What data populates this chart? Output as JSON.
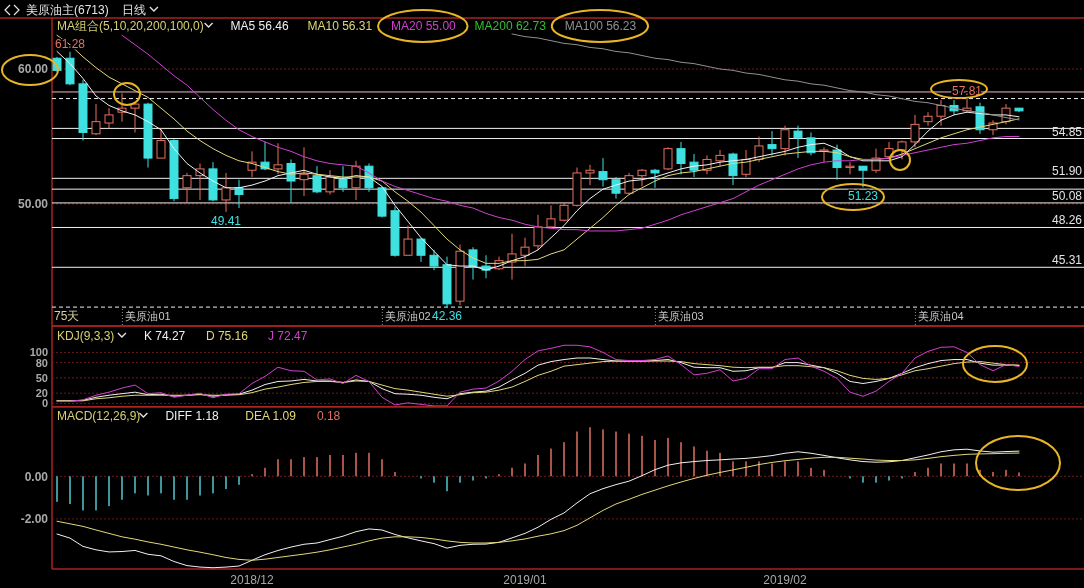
{
  "chart_data": [
    {
      "type": "candlestick",
      "title": "美原油主(6713)",
      "subtitle": "日线",
      "legend_title": "MA组合(5,10,20,200,100,0)",
      "legend": "top left",
      "grid": "y",
      "categories": [
        null,
        null,
        null,
        null,
        null,
        null,
        null,
        "美原油01",
        null,
        null,
        null,
        null,
        null,
        null,
        null,
        null,
        null,
        null,
        null,
        null,
        null,
        null,
        null,
        null,
        null,
        null,
        null,
        "美原油02",
        null,
        null,
        null,
        null,
        null,
        null,
        null,
        null,
        null,
        null,
        null,
        null,
        null,
        null,
        null,
        null,
        null,
        null,
        null,
        null,
        "美原油03",
        null,
        null,
        null,
        null,
        null,
        null,
        null,
        null,
        null,
        null,
        null,
        null,
        null,
        null,
        null,
        null,
        null,
        null,
        null,
        "美原油04",
        null,
        null,
        null,
        null,
        null,
        null
      ],
      "ohlc": [
        [
          60.8,
          60.9,
          59.8,
          59.9
        ],
        [
          60.8,
          61.28,
          58.8,
          58.9
        ],
        [
          58.9,
          59.2,
          54.7,
          55.3
        ],
        [
          55.2,
          57.4,
          55.1,
          56.1
        ],
        [
          56.0,
          57.1,
          55.6,
          56.6
        ],
        [
          56.8,
          58.2,
          56.1,
          57.1
        ],
        [
          57.1,
          57.5,
          55.3,
          57.4
        ],
        [
          57.4,
          57.5,
          52.7,
          53.4
        ],
        [
          53.4,
          55.6,
          53.4,
          54.7
        ],
        [
          54.7,
          54.8,
          50.2,
          50.4
        ],
        [
          51.2,
          52.3,
          50.1,
          52.1
        ],
        [
          52.1,
          53.0,
          50.3,
          52.6
        ],
        [
          52.6,
          53.1,
          50.2,
          50.3
        ],
        [
          50.3,
          52.3,
          49.41,
          51.2
        ],
        [
          51.2,
          51.8,
          49.7,
          50.7
        ],
        [
          52.5,
          53.9,
          52.0,
          53.1
        ],
        [
          53.1,
          54.6,
          52.5,
          52.6
        ],
        [
          52.6,
          54.5,
          52.2,
          52.9
        ],
        [
          53.0,
          53.3,
          50.1,
          51.7
        ],
        [
          51.8,
          54.2,
          50.6,
          52.2
        ],
        [
          52.1,
          52.8,
          50.8,
          50.9
        ],
        [
          50.9,
          52.5,
          50.7,
          52.0
        ],
        [
          51.9,
          52.8,
          50.9,
          51.2
        ],
        [
          51.2,
          53.2,
          50.3,
          52.8
        ],
        [
          52.8,
          53.0,
          50.9,
          51.2
        ],
        [
          51.2,
          51.3,
          49.0,
          49.1
        ],
        [
          49.5,
          49.8,
          46.1,
          46.2
        ],
        [
          46.2,
          48.4,
          46.2,
          47.4
        ],
        [
          47.4,
          47.5,
          45.7,
          46.2
        ],
        [
          46.2,
          46.6,
          45.1,
          45.4
        ],
        [
          45.5,
          46.1,
          42.36,
          42.6
        ],
        [
          42.8,
          47.0,
          42.5,
          46.5
        ],
        [
          46.6,
          46.8,
          44.4,
          45.3
        ],
        [
          45.4,
          46.2,
          44.5,
          45.1
        ],
        [
          45.2,
          46.1,
          45.1,
          45.8
        ],
        [
          45.7,
          47.8,
          44.4,
          46.3
        ],
        [
          46.2,
          47.5,
          45.4,
          46.8
        ],
        [
          46.9,
          49.2,
          46.6,
          48.3
        ],
        [
          48.3,
          49.9,
          48.2,
          48.9
        ],
        [
          48.8,
          50.1,
          48.7,
          49.9
        ],
        [
          49.9,
          52.7,
          49.8,
          52.3
        ],
        [
          52.3,
          52.9,
          51.4,
          52.5
        ],
        [
          52.4,
          53.4,
          51.3,
          51.8
        ],
        [
          51.8,
          52.0,
          50.4,
          50.8
        ],
        [
          50.8,
          52.3,
          50.7,
          52.1
        ],
        [
          52.1,
          52.6,
          51.3,
          52.5
        ],
        [
          52.5,
          52.6,
          51.2,
          52.3
        ],
        [
          52.6,
          54.2,
          52.5,
          54.1
        ],
        [
          54.1,
          54.6,
          52.2,
          53.0
        ],
        [
          53.1,
          53.7,
          52.0,
          52.5
        ],
        [
          52.5,
          53.6,
          52.2,
          53.3
        ],
        [
          53.2,
          54.0,
          52.8,
          53.6
        ],
        [
          53.7,
          53.8,
          51.4,
          52.1
        ],
        [
          52.2,
          54.0,
          52.0,
          53.3
        ],
        [
          53.3,
          55.0,
          53.1,
          54.3
        ],
        [
          54.4,
          55.4,
          53.6,
          54.1
        ],
        [
          54.1,
          55.8,
          53.6,
          55.5
        ],
        [
          55.4,
          55.8,
          53.4,
          54.9
        ],
        [
          54.9,
          55.3,
          53.6,
          53.8
        ],
        [
          53.9,
          54.2,
          53.1,
          54.0
        ],
        [
          54.0,
          54.4,
          51.8,
          52.7
        ],
        [
          52.7,
          53.1,
          52.2,
          52.8
        ],
        [
          52.8,
          52.8,
          51.23,
          52.5
        ],
        [
          52.5,
          54.1,
          52.3,
          53.4
        ],
        [
          53.5,
          54.6,
          53.3,
          54.1
        ],
        [
          54.0,
          54.7,
          53.3,
          54.6
        ],
        [
          54.6,
          56.6,
          54.2,
          55.9
        ],
        [
          56.1,
          56.8,
          55.8,
          56.5
        ],
        [
          56.5,
          57.7,
          55.8,
          57.3
        ],
        [
          57.3,
          57.7,
          56.6,
          56.9
        ],
        [
          56.9,
          57.81,
          56.8,
          57.1
        ],
        [
          57.2,
          57.5,
          55.2,
          55.5
        ],
        [
          55.5,
          56.2,
          55.1,
          56.0
        ],
        [
          56.1,
          57.4,
          55.9,
          57.1
        ],
        [
          57.1,
          57.1,
          56.8,
          56.9
        ]
      ],
      "series": [
        {
          "type": "line",
          "name": "MA5 56.46",
          "color": "#f0f0f0",
          "values": [
            61.3,
            60.4,
            59.3,
            58.0,
            57.3,
            56.9,
            56.6,
            56.1,
            55.5,
            54.1,
            53.0,
            52.3,
            51.7,
            51.2,
            51.2,
            51.4,
            51.7,
            52.1,
            52.3,
            52.5,
            52.2,
            52.0,
            51.9,
            52.1,
            52.0,
            51.3,
            49.9,
            48.7,
            47.5,
            46.5,
            45.5,
            45.4,
            45.4,
            45.1,
            45.4,
            45.8,
            46.1,
            46.6,
            47.5,
            48.4,
            49.5,
            50.4,
            51.1,
            51.4,
            51.7,
            51.8,
            52.0,
            52.3,
            52.6,
            52.8,
            52.9,
            53.1,
            53.2,
            53.3,
            53.5,
            53.7,
            53.9,
            54.2,
            54.4,
            54.5,
            54.1,
            53.5,
            53.2,
            53.2,
            53.2,
            53.5,
            54.4,
            55.4,
            56.2,
            56.6,
            56.8,
            56.7,
            56.6,
            56.6,
            56.46
          ]
        },
        {
          "type": "line",
          "name": "MA10 56.31",
          "color": "#e0d878",
          "values": [
            62.5,
            61.8,
            60.9,
            60.1,
            59.4,
            58.9,
            58.4,
            57.9,
            57.1,
            56.3,
            55.4,
            54.7,
            54.1,
            53.6,
            53.2,
            53.0,
            52.7,
            52.4,
            52.2,
            52.3,
            52.2,
            52.1,
            52.0,
            52.0,
            52.0,
            51.7,
            50.9,
            50.2,
            49.4,
            48.4,
            47.4,
            46.6,
            46.0,
            45.6,
            45.6,
            45.8,
            45.8,
            45.9,
            46.3,
            46.6,
            47.4,
            48.2,
            49.0,
            49.9,
            50.7,
            51.2,
            51.7,
            52.1,
            52.3,
            52.4,
            52.6,
            52.8,
            53.0,
            53.1,
            53.3,
            53.5,
            53.7,
            53.8,
            53.9,
            53.9,
            53.8,
            53.5,
            53.3,
            53.3,
            53.4,
            53.7,
            54.1,
            54.5,
            54.9,
            55.2,
            55.5,
            55.7,
            55.9,
            56.1,
            56.31
          ]
        },
        {
          "type": "line",
          "name": "MA20 55.00",
          "color": "#d040d0",
          "values": [
            null,
            null,
            null,
            null,
            null,
            62.5,
            61.8,
            61.1,
            60.3,
            59.5,
            58.8,
            57.9,
            57.0,
            56.2,
            55.5,
            55.0,
            54.6,
            54.2,
            53.9,
            53.5,
            53.2,
            53.0,
            52.9,
            52.8,
            52.3,
            51.7,
            51.3,
            51.0,
            50.7,
            50.4,
            50.2,
            49.9,
            49.7,
            49.3,
            49.0,
            48.8,
            48.5,
            48.3,
            48.2,
            48.1,
            48.1,
            48.0,
            48.0,
            48.0,
            48.1,
            48.2,
            48.5,
            48.8,
            49.2,
            49.5,
            49.8,
            50.1,
            50.4,
            50.9,
            51.4,
            51.8,
            52.2,
            52.6,
            52.9,
            53.1,
            53.2,
            53.2,
            53.3,
            53.3,
            53.4,
            53.6,
            53.8,
            54.0,
            54.2,
            54.4,
            54.5,
            54.7,
            54.9,
            55.0,
            55.0
          ]
        },
        {
          "type": "line",
          "name": "MA200 62.73",
          "color": "#30c030",
          "values": [
            null,
            null,
            null,
            null,
            null,
            null,
            null,
            null,
            null,
            null,
            null,
            null,
            null,
            null,
            null,
            null,
            null,
            null,
            null,
            null,
            null,
            null,
            null,
            null,
            null,
            null,
            null,
            null,
            null,
            null,
            null,
            null,
            null,
            null,
            null,
            null,
            null,
            null,
            null,
            null,
            null,
            null,
            null,
            null,
            null,
            null,
            null,
            null,
            null,
            null,
            null,
            null,
            null,
            null,
            null,
            null,
            null,
            null,
            null,
            null,
            null,
            null,
            null,
            null,
            null,
            null,
            null,
            null,
            null,
            null,
            null,
            null,
            null,
            null,
            null
          ]
        },
        {
          "type": "line",
          "name": "MA100 56.23",
          "color": "#909090",
          "values": [
            null,
            null,
            null,
            null,
            null,
            null,
            null,
            null,
            null,
            null,
            null,
            null,
            null,
            null,
            null,
            null,
            null,
            null,
            null,
            null,
            null,
            null,
            null,
            null,
            null,
            null,
            null,
            null,
            null,
            null,
            null,
            null,
            null,
            null,
            null,
            62.6,
            62.4,
            62.3,
            62.1,
            61.9,
            61.8,
            61.6,
            61.5,
            61.3,
            61.2,
            61.0,
            60.8,
            60.7,
            60.5,
            60.4,
            60.2,
            60.0,
            59.9,
            59.7,
            59.6,
            59.4,
            59.2,
            59.1,
            58.9,
            58.8,
            58.6,
            58.4,
            58.3,
            58.1,
            58.0,
            57.8,
            57.6,
            57.5,
            57.3,
            57.1,
            56.9,
            56.8,
            56.6,
            56.4,
            56.23
          ]
        }
      ],
      "ylim": [
        40.96,
        63.78
      ],
      "yticks": [
        {
          "value": 50,
          "label": "50.00"
        },
        {
          "value": 60,
          "label": "60.00"
        }
      ],
      "ref_lines": [
        {
          "axis": "y",
          "value": 58.3,
          "color": "#e8b8c4"
        },
        {
          "axis": "y",
          "value": 55.6,
          "color": "#f0f0f0"
        },
        {
          "axis": "y",
          "value": 51.1,
          "color": "#f0f0f0"
        },
        {
          "axis": "y",
          "value": 57.81,
          "color": "#f0f0f0",
          "line_style": "dashed"
        },
        {
          "axis": "y",
          "value": 54.85,
          "label": "54.85",
          "color": "#f0f0f0"
        },
        {
          "axis": "y",
          "value": 51.9,
          "label": "51.90",
          "color": "#f0f0f0"
        },
        {
          "axis": "y",
          "value": 50.08,
          "label": "50.08",
          "color": "#f0f0f0"
        },
        {
          "axis": "y",
          "value": 48.26,
          "label": "48.26",
          "color": "#f0f0f0"
        },
        {
          "axis": "y",
          "value": 45.31,
          "label": "45.31",
          "color": "#f0f0f0"
        },
        {
          "axis": "y",
          "value": 42.36,
          "color": "#f0f0f0",
          "line_style": "dashed"
        }
      ],
      "annotations": [
        "75天",
        {
          "text": "61.28",
          "y": 61.28
        },
        {
          "text": "49.41",
          "y": 49.41
        },
        {
          "text": "42.36",
          "y": 42.36
        },
        {
          "text": "51.23",
          "y": 51.23
        },
        {
          "text": "57.81",
          "y": 57.81
        }
      ]
    },
    {
      "type": "line",
      "legend_title": "KDJ(9,3,3)",
      "legend": "top left",
      "grid": "y",
      "tick_labels": "y",
      "categories": [
        null,
        null,
        null,
        null,
        null,
        null,
        null,
        null,
        null,
        null,
        null,
        null,
        null,
        null,
        null,
        null,
        null,
        null,
        null,
        null,
        null,
        null,
        null,
        null,
        null,
        null,
        null,
        null,
        null,
        null,
        null,
        null,
        null,
        null,
        null,
        null,
        null,
        null,
        null,
        null,
        null,
        null,
        null,
        null,
        null,
        null,
        null,
        null,
        null,
        null,
        null,
        null,
        null,
        null,
        null,
        null,
        null,
        null,
        null,
        null,
        null,
        null,
        null,
        null,
        null,
        null,
        null,
        null,
        null,
        null,
        null,
        null,
        null,
        null,
        null
      ],
      "series": [
        {
          "name": "K 74.27",
          "color": "#f0f0f0",
          "values": [
            5,
            5,
            6,
            12,
            16,
            19,
            22,
            17,
            18,
            14,
            16,
            18,
            14,
            17,
            18,
            26,
            37,
            43,
            44,
            47,
            44,
            44,
            41,
            46,
            43,
            29,
            19,
            18,
            16,
            12,
            9,
            19,
            22,
            24,
            32,
            46,
            59,
            75,
            82,
            86,
            89,
            89,
            86,
            83,
            83,
            83,
            84,
            86,
            80,
            71,
            70,
            70,
            63,
            64,
            70,
            70,
            80,
            80,
            75,
            70,
            59,
            43,
            39,
            43,
            49,
            59,
            70,
            78,
            84,
            86,
            86,
            79,
            75,
            75,
            74.27
          ]
        },
        {
          "name": "D 75.16",
          "color": "#e0d878",
          "values": [
            5,
            5,
            5,
            9,
            11,
            14,
            16,
            16,
            16,
            16,
            16,
            17,
            16,
            16,
            17,
            21,
            28,
            32,
            37,
            41,
            43,
            43,
            41,
            44,
            43,
            36,
            29,
            26,
            22,
            18,
            14,
            17,
            21,
            22,
            26,
            32,
            43,
            55,
            63,
            73,
            76,
            79,
            82,
            83,
            83,
            83,
            83,
            83,
            82,
            78,
            76,
            74,
            71,
            70,
            71,
            71,
            74,
            74,
            72,
            70,
            64,
            55,
            49,
            47,
            49,
            56,
            64,
            68,
            73,
            78,
            81,
            82,
            79,
            76,
            75.16
          ]
        },
        {
          "name": "J 72.47",
          "color": "#d040d0",
          "values": [
            4,
            4,
            7,
            16,
            22,
            30,
            36,
            19,
            21,
            12,
            16,
            20,
            11,
            18,
            19,
            39,
            53,
            71,
            64,
            63,
            46,
            48,
            39,
            55,
            43,
            12,
            -3,
            1,
            -2,
            -5,
            -5,
            22,
            28,
            30,
            44,
            63,
            86,
            103,
            108,
            114,
            114,
            111,
            100,
            86,
            84,
            84,
            86,
            93,
            76,
            56,
            59,
            66,
            44,
            49,
            68,
            68,
            86,
            89,
            73,
            63,
            49,
            22,
            14,
            24,
            43,
            59,
            89,
            102,
            110,
            111,
            100,
            76,
            64,
            76,
            72.47
          ]
        }
      ],
      "ylim": [
        -6.7,
        151.8
      ],
      "yticks": [
        0,
        20,
        50,
        80,
        100
      ]
    },
    {
      "type": "bar",
      "legend_title": "MACD(12,26,9)",
      "legend": "top left",
      "grid": "y",
      "categories": [
        null,
        null,
        null,
        null,
        null,
        null,
        null,
        null,
        null,
        null,
        null,
        null,
        null,
        null,
        null,
        "2018/12",
        null,
        null,
        null,
        null,
        null,
        null,
        null,
        null,
        null,
        null,
        null,
        null,
        null,
        null,
        null,
        null,
        null,
        null,
        null,
        null,
        "2019/01",
        null,
        null,
        null,
        null,
        null,
        null,
        null,
        null,
        null,
        null,
        null,
        null,
        null,
        null,
        null,
        null,
        null,
        null,
        null,
        "2019/02",
        null,
        null,
        null,
        null,
        null,
        null,
        null,
        null,
        null,
        null,
        null,
        null,
        null,
        null,
        null,
        null,
        null,
        null
      ],
      "series": [
        {
          "type": "line",
          "name": "DIFF 1.18",
          "color": "#f0f0f0",
          "values": [
            -2.71,
            -2.9,
            -3.29,
            -3.45,
            -3.55,
            -3.53,
            -3.48,
            -3.66,
            -3.73,
            -4.0,
            -4.19,
            -4.26,
            -4.29,
            -4.26,
            -4.21,
            -3.94,
            -3.68,
            -3.48,
            -3.32,
            -3.19,
            -3.13,
            -2.97,
            -2.81,
            -2.6,
            -2.47,
            -2.52,
            -2.73,
            -2.89,
            -3.03,
            -3.16,
            -3.37,
            -3.24,
            -3.19,
            -3.18,
            -3.1,
            -2.89,
            -2.68,
            -2.39,
            -2.02,
            -1.72,
            -1.25,
            -0.82,
            -0.58,
            -0.39,
            -0.23,
            0.03,
            0.31,
            0.52,
            0.63,
            0.69,
            0.74,
            0.77,
            0.81,
            0.84,
            0.9,
            0.97,
            1.08,
            1.15,
            1.08,
            0.98,
            0.87,
            0.77,
            0.69,
            0.66,
            0.68,
            0.74,
            0.87,
            1.0,
            1.15,
            1.24,
            1.27,
            1.19,
            1.13,
            1.16,
            1.18
          ]
        },
        {
          "type": "line",
          "name": "DEA 1.09",
          "color": "#e0d878",
          "values": [
            -2.11,
            -2.23,
            -2.35,
            -2.52,
            -2.68,
            -2.84,
            -2.95,
            -3.08,
            -3.19,
            -3.32,
            -3.45,
            -3.56,
            -3.68,
            -3.81,
            -3.9,
            -3.94,
            -3.89,
            -3.81,
            -3.73,
            -3.65,
            -3.56,
            -3.45,
            -3.32,
            -3.19,
            -3.03,
            -2.9,
            -2.84,
            -2.84,
            -2.87,
            -2.94,
            -3.03,
            -3.1,
            -3.13,
            -3.13,
            -3.1,
            -3.03,
            -2.94,
            -2.81,
            -2.7,
            -2.55,
            -2.3,
            -1.95,
            -1.6,
            -1.3,
            -1.08,
            -0.85,
            -0.65,
            -0.45,
            -0.27,
            -0.1,
            0.05,
            0.18,
            0.3,
            0.42,
            0.55,
            0.65,
            0.73,
            0.79,
            0.85,
            0.89,
            0.89,
            0.85,
            0.81,
            0.76,
            0.74,
            0.74,
            0.77,
            0.84,
            0.92,
            0.98,
            1.03,
            1.05,
            1.06,
            1.08,
            1.09
          ]
        },
        {
          "name": "0.18",
          "color": "#e07060",
          "colors": [
            "#50c8d0",
            "#50c8d0",
            "#50c8d0",
            "#50c8d0",
            "#50c8d0",
            "#50c8d0",
            "#50c8d0",
            "#50c8d0",
            "#50c8d0",
            "#50c8d0",
            "#50c8d0",
            "#50c8d0",
            "#50c8d0",
            "#50c8d0",
            "#50c8d0",
            "#e07060",
            "#e07060",
            "#e07060",
            "#e07060",
            "#e07060",
            "#e07060",
            "#e07060",
            "#e07060",
            "#e07060",
            "#e07060",
            "#e07060",
            "#e07060",
            "#e07060",
            "#50c8d0",
            "#50c8d0",
            "#50c8d0",
            "#50c8d0",
            "#50c8d0",
            "#50c8d0",
            "#e07060",
            "#e07060",
            "#e07060",
            "#e07060",
            "#e07060",
            "#e07060",
            "#e07060",
            "#e07060",
            "#e07060",
            "#e07060",
            "#e07060",
            "#e07060",
            "#e07060",
            "#e07060",
            "#e07060",
            "#e07060",
            "#e07060",
            "#e07060",
            "#e07060",
            "#e07060",
            "#e07060",
            "#e07060",
            "#e07060",
            "#e07060",
            "#e07060",
            "#e07060",
            "#e07060",
            "#50c8d0",
            "#50c8d0",
            "#50c8d0",
            "#50c8d0",
            "#50c8d0",
            "#e07060",
            "#e07060",
            "#e07060",
            "#e07060",
            "#e07060",
            "#e07060",
            "#e07060",
            "#e07060",
            "#e07060"
          ],
          "values": [
            -1.2,
            -1.3,
            -1.6,
            -1.6,
            -1.4,
            -1.1,
            -0.8,
            -0.9,
            -0.8,
            -1.1,
            -1.1,
            -0.9,
            -0.8,
            -0.6,
            -0.4,
            0.1,
            0.4,
            0.8,
            0.8,
            0.9,
            0.9,
            1.0,
            1.0,
            1.1,
            1.1,
            0.8,
            0.2,
            0,
            -0.1,
            -0.3,
            -0.7,
            -0.3,
            -0.2,
            -0.1,
            0.1,
            0.4,
            0.6,
            1.0,
            1.3,
            1.6,
            2.1,
            2.3,
            2.2,
            2.1,
            2.0,
            1.9,
            1.7,
            1.8,
            1.6,
            1.4,
            1.2,
            1.1,
            0.7,
            0.7,
            0.7,
            0.6,
            0.7,
            0.7,
            0.4,
            0.3,
            0,
            -0.1,
            -0.3,
            -0.3,
            -0.2,
            -0.1,
            0.2,
            0.4,
            0.6,
            0.6,
            0.6,
            0.3,
            0.2,
            0.3,
            0.18
          ]
        }
      ],
      "ylim": [
        -4.35,
        3.26
      ],
      "yticks": [
        {
          "value": -2,
          "label": "-2.00"
        },
        {
          "value": 0,
          "label": "0.00"
        }
      ]
    }
  ]
}
